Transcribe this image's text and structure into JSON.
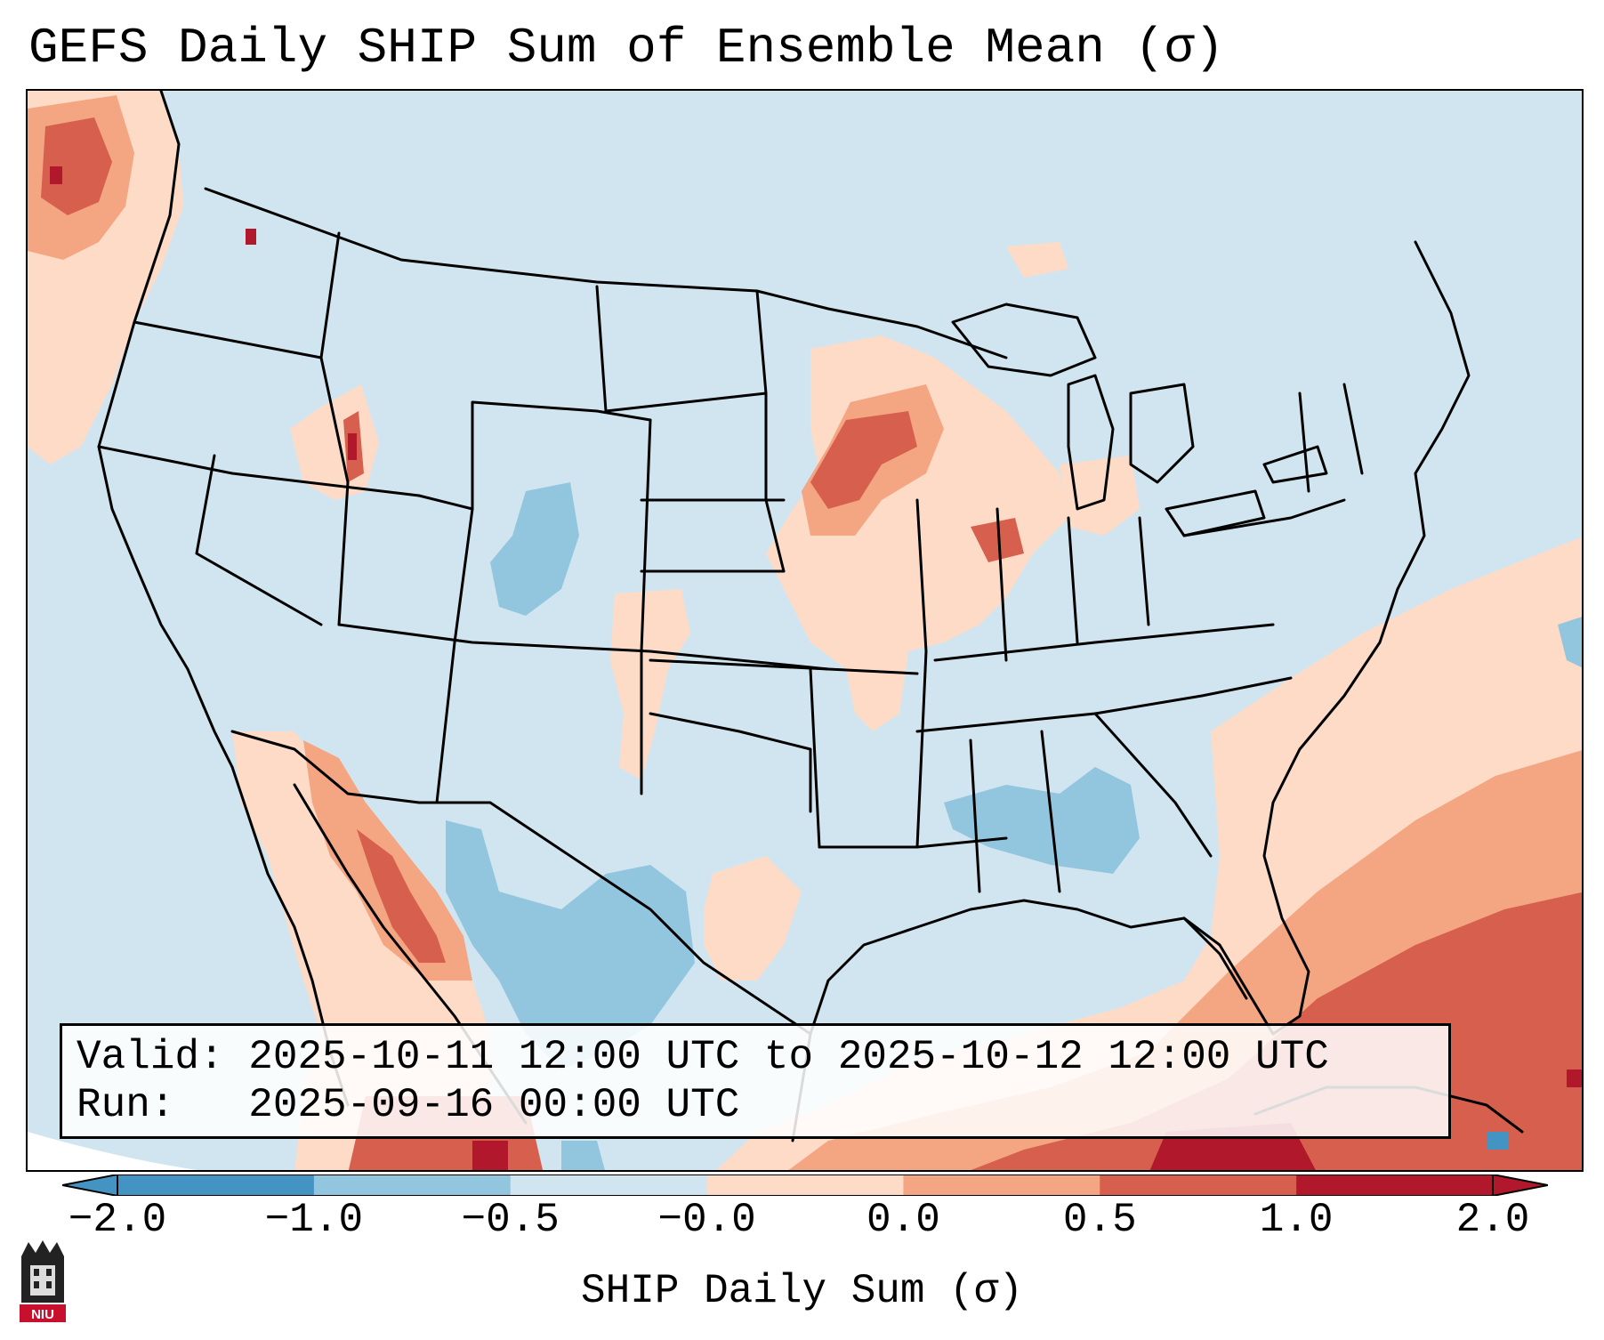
{
  "title": "GEFS Daily SHIP Sum of Ensemble Mean (σ)",
  "info": {
    "valid": "Valid: 2025-10-11 12:00 UTC to 2025-10-12 12:00 UTC",
    "run": "Run:   2025-09-16 00:00 UTC"
  },
  "colorbar": {
    "label": "SHIP Daily Sum (σ)",
    "tick_labels": [
      "−2.0",
      "−1.0",
      "−0.5",
      "−0.0",
      "0.0",
      "0.5",
      "1.0",
      "2.0"
    ],
    "colors": [
      "#4393c3",
      "#92c5de",
      "#d1e5f0",
      "#fddbc7",
      "#f4a582",
      "#d6604d",
      "#b2182b"
    ],
    "extend": "both"
  },
  "legend_colors": {
    "neutral_below": "#d1e5f0",
    "slight_above": "#fddbc7",
    "moderate_above": "#f4a582",
    "high_above": "#d6604d",
    "very_high_above": "#b2182b",
    "slight_below": "#92c5de",
    "moderate_below": "#4393c3"
  },
  "map": {
    "projection": "Lambert Conformal",
    "region": "CONUS",
    "features": [
      "state borders",
      "country borders",
      "coastlines",
      "Great Lakes"
    ]
  },
  "logo": {
    "text": "NIU"
  }
}
